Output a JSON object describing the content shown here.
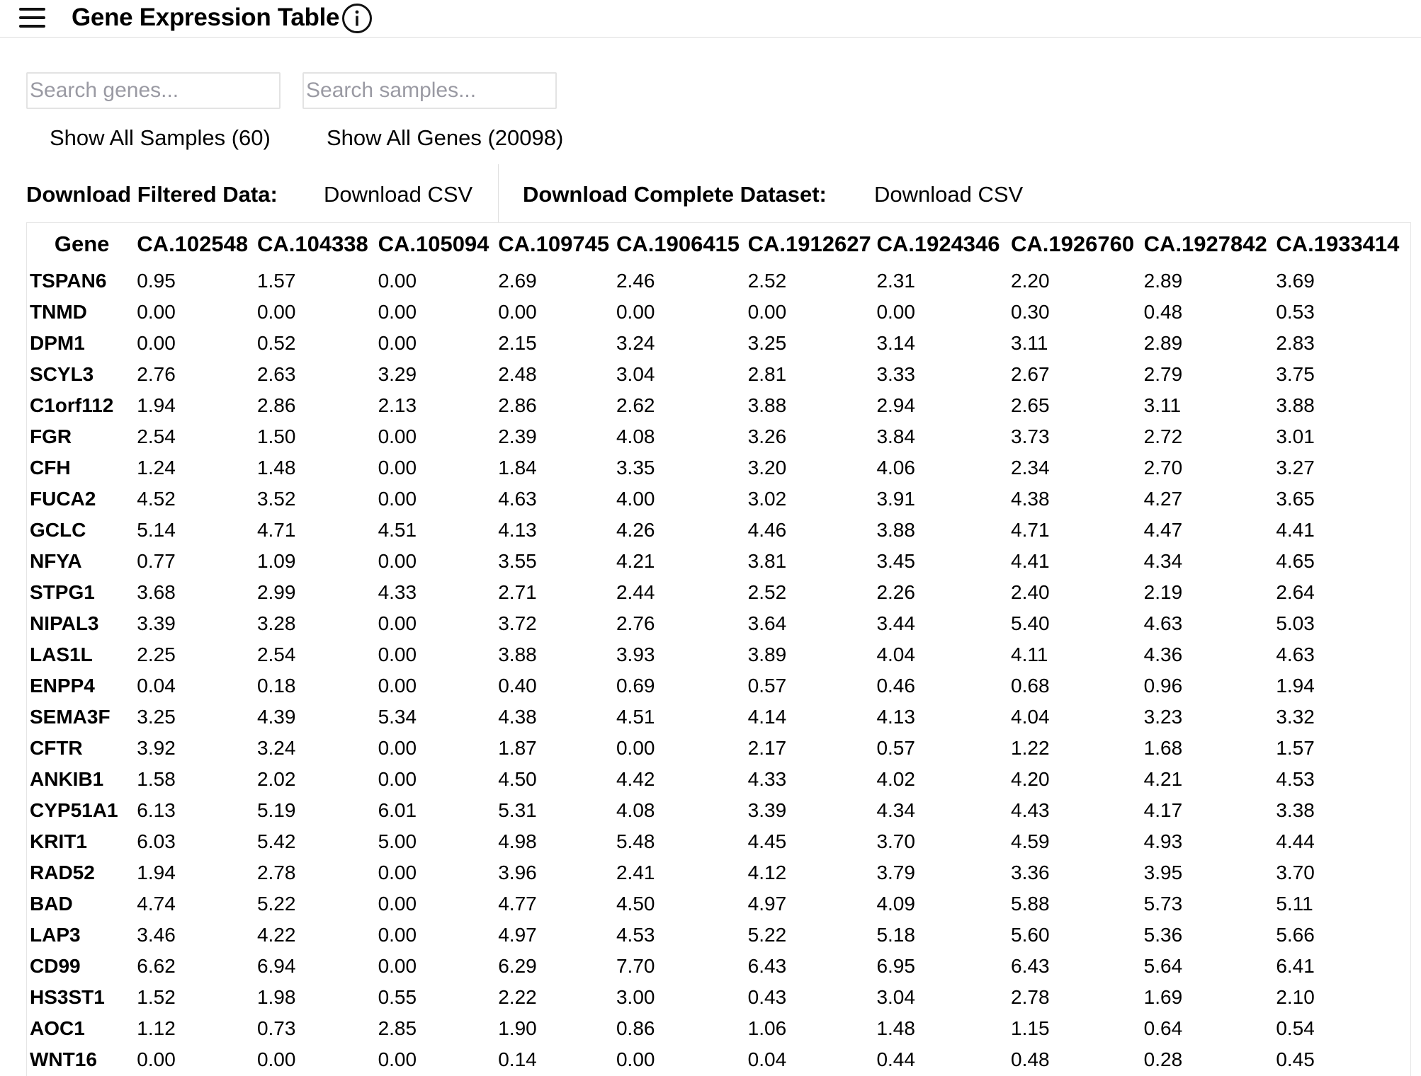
{
  "header": {
    "title": "Gene Expression Table"
  },
  "filters": {
    "gene_placeholder": "Search genes...",
    "sample_placeholder": "Search samples...",
    "show_all_samples": "Show All Samples (60)",
    "show_all_genes": "Show All Genes (20098)"
  },
  "downloads": {
    "filtered_label": "Download Filtered Data:",
    "filtered_button": "Download CSV",
    "complete_label": "Download Complete Dataset:",
    "complete_button": "Download CSV"
  },
  "table": {
    "columns": [
      "Gene",
      "CA.102548",
      "CA.104338",
      "CA.105094",
      "CA.109745",
      "CA.1906415",
      "CA.1912627",
      "CA.1924346",
      "CA.1926760",
      "CA.1927842",
      "CA.1933414"
    ],
    "rows": [
      [
        "TSPAN6",
        "0.95",
        "1.57",
        "0.00",
        "2.69",
        "2.46",
        "2.52",
        "2.31",
        "2.20",
        "2.89",
        "3.69"
      ],
      [
        "TNMD",
        "0.00",
        "0.00",
        "0.00",
        "0.00",
        "0.00",
        "0.00",
        "0.00",
        "0.30",
        "0.48",
        "0.53"
      ],
      [
        "DPM1",
        "0.00",
        "0.52",
        "0.00",
        "2.15",
        "3.24",
        "3.25",
        "3.14",
        "3.11",
        "2.89",
        "2.83"
      ],
      [
        "SCYL3",
        "2.76",
        "2.63",
        "3.29",
        "2.48",
        "3.04",
        "2.81",
        "3.33",
        "2.67",
        "2.79",
        "3.75"
      ],
      [
        "C1orf112",
        "1.94",
        "2.86",
        "2.13",
        "2.86",
        "2.62",
        "3.88",
        "2.94",
        "2.65",
        "3.11",
        "3.88"
      ],
      [
        "FGR",
        "2.54",
        "1.50",
        "0.00",
        "2.39",
        "4.08",
        "3.26",
        "3.84",
        "3.73",
        "2.72",
        "3.01"
      ],
      [
        "CFH",
        "1.24",
        "1.48",
        "0.00",
        "1.84",
        "3.35",
        "3.20",
        "4.06",
        "2.34",
        "2.70",
        "3.27"
      ],
      [
        "FUCA2",
        "4.52",
        "3.52",
        "0.00",
        "4.63",
        "4.00",
        "3.02",
        "3.91",
        "4.38",
        "4.27",
        "3.65"
      ],
      [
        "GCLC",
        "5.14",
        "4.71",
        "4.51",
        "4.13",
        "4.26",
        "4.46",
        "3.88",
        "4.71",
        "4.47",
        "4.41"
      ],
      [
        "NFYA",
        "0.77",
        "1.09",
        "0.00",
        "3.55",
        "4.21",
        "3.81",
        "3.45",
        "4.41",
        "4.34",
        "4.65"
      ],
      [
        "STPG1",
        "3.68",
        "2.99",
        "4.33",
        "2.71",
        "2.44",
        "2.52",
        "2.26",
        "2.40",
        "2.19",
        "2.64"
      ],
      [
        "NIPAL3",
        "3.39",
        "3.28",
        "0.00",
        "3.72",
        "2.76",
        "3.64",
        "3.44",
        "5.40",
        "4.63",
        "5.03"
      ],
      [
        "LAS1L",
        "2.25",
        "2.54",
        "0.00",
        "3.88",
        "3.93",
        "3.89",
        "4.04",
        "4.11",
        "4.36",
        "4.63"
      ],
      [
        "ENPP4",
        "0.04",
        "0.18",
        "0.00",
        "0.40",
        "0.69",
        "0.57",
        "0.46",
        "0.68",
        "0.96",
        "1.94"
      ],
      [
        "SEMA3F",
        "3.25",
        "4.39",
        "5.34",
        "4.38",
        "4.51",
        "4.14",
        "4.13",
        "4.04",
        "3.23",
        "3.32"
      ],
      [
        "CFTR",
        "3.92",
        "3.24",
        "0.00",
        "1.87",
        "0.00",
        "2.17",
        "0.57",
        "1.22",
        "1.68",
        "1.57"
      ],
      [
        "ANKIB1",
        "1.58",
        "2.02",
        "0.00",
        "4.50",
        "4.42",
        "4.33",
        "4.02",
        "4.20",
        "4.21",
        "4.53"
      ],
      [
        "CYP51A1",
        "6.13",
        "5.19",
        "6.01",
        "5.31",
        "4.08",
        "3.39",
        "4.34",
        "4.43",
        "4.17",
        "3.38"
      ],
      [
        "KRIT1",
        "6.03",
        "5.42",
        "5.00",
        "4.98",
        "5.48",
        "4.45",
        "3.70",
        "4.59",
        "4.93",
        "4.44"
      ],
      [
        "RAD52",
        "1.94",
        "2.78",
        "0.00",
        "3.96",
        "2.41",
        "4.12",
        "3.79",
        "3.36",
        "3.95",
        "3.70"
      ],
      [
        "BAD",
        "4.74",
        "5.22",
        "0.00",
        "4.77",
        "4.50",
        "4.97",
        "4.09",
        "5.88",
        "5.73",
        "5.11"
      ],
      [
        "LAP3",
        "3.46",
        "4.22",
        "0.00",
        "4.97",
        "4.53",
        "5.22",
        "5.18",
        "5.60",
        "5.36",
        "5.66"
      ],
      [
        "CD99",
        "6.62",
        "6.94",
        "0.00",
        "6.29",
        "7.70",
        "6.43",
        "6.95",
        "6.43",
        "5.64",
        "6.41"
      ],
      [
        "HS3ST1",
        "1.52",
        "1.98",
        "0.55",
        "2.22",
        "3.00",
        "0.43",
        "3.04",
        "2.78",
        "1.69",
        "2.10"
      ],
      [
        "AOC1",
        "1.12",
        "0.73",
        "2.85",
        "1.90",
        "0.86",
        "1.06",
        "1.48",
        "1.15",
        "0.64",
        "0.54"
      ],
      [
        "WNT16",
        "0.00",
        "0.00",
        "0.00",
        "0.14",
        "0.00",
        "0.04",
        "0.44",
        "0.48",
        "0.28",
        "0.45"
      ]
    ]
  }
}
